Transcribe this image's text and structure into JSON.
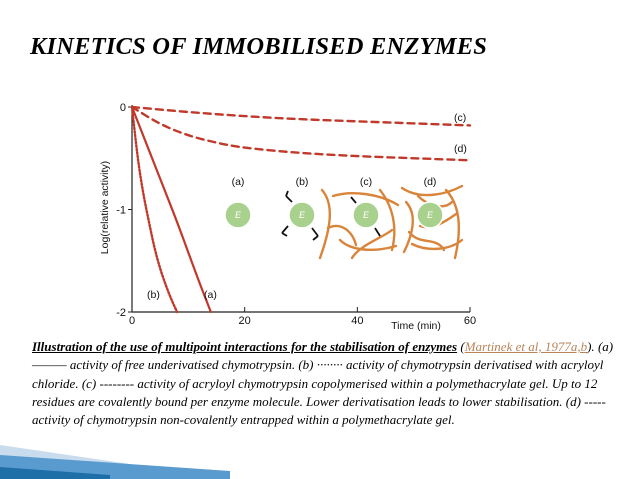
{
  "slide": {
    "title": "KINETICS OF IMMOBILISED ENZYMES"
  },
  "chart_data": {
    "type": "line",
    "title": "",
    "xlabel": "Time (min)",
    "ylabel": "Log(relative activity)",
    "xlim": [
      0,
      60
    ],
    "ylim": [
      -2,
      0
    ],
    "x_ticks": [
      0,
      20,
      40,
      60
    ],
    "x_tick_labels": [
      "0",
      "20",
      "40",
      "60"
    ],
    "y_ticks": [
      0,
      -1,
      -2
    ],
    "y_tick_labels": [
      "0",
      "-1",
      "-2"
    ],
    "series": [
      {
        "name": "(a)",
        "style": "solid",
        "color": "#c0392b",
        "x": [
          0,
          2,
          4,
          6,
          8,
          10,
          12,
          14
        ],
        "y": [
          0,
          -0.28,
          -0.56,
          -0.84,
          -1.12,
          -1.42,
          -1.72,
          -2.0
        ]
      },
      {
        "name": "(b)",
        "style": "dotted",
        "color": "#c0392b",
        "x": [
          0,
          1,
          2,
          3,
          4,
          5,
          6,
          7,
          8
        ],
        "y": [
          0,
          -0.5,
          -0.85,
          -1.12,
          -1.38,
          -1.58,
          -1.74,
          -1.88,
          -2.0
        ]
      },
      {
        "name": "(c)",
        "style": "dashed",
        "color": "#c0392b",
        "x": [
          0,
          10,
          20,
          30,
          40,
          50,
          60
        ],
        "y": [
          0,
          -0.05,
          -0.09,
          -0.12,
          -0.14,
          -0.16,
          -0.18
        ]
      },
      {
        "name": "(d)",
        "style": "dashed",
        "color": "#c0392b",
        "x": [
          0,
          5,
          10,
          15,
          20,
          30,
          40,
          50,
          60
        ],
        "y": [
          0,
          -0.17,
          -0.28,
          -0.35,
          -0.4,
          -0.45,
          -0.48,
          -0.5,
          -0.52
        ]
      }
    ],
    "series_labels": [
      "(a)",
      "(b)",
      "(c)",
      "(d)"
    ],
    "grid": false,
    "inset": {
      "labels": [
        "(a)",
        "(b)",
        "(c)",
        "(d)"
      ],
      "enzyme_symbol": "E",
      "enzyme_color": "#a9d18e",
      "polymer_color": "#d9843b"
    }
  },
  "caption": {
    "title": "Illustration of the use of multipoint interactions for the stabilisation of enzymes",
    "ref_open": " (",
    "ref_link": "Martinek et al, 1977a,b",
    "ref_close": ").",
    "body": " (a) ——— activity of free underivatised chymotrypsin. (b) ········ activity of chymotrypsin derivatised with acryloyl chloride. (c) -------- activity of acryloyl chymotrypsin copolymerised within a polymethacrylate gel. Up to 12 residues are covalently bound per enzyme molecule. Lower derivatisation leads to lower stabilisation. (d) ----- activity of chymotrypsin non-covalently entrapped within a polymethacrylate gel."
  },
  "theme": {
    "curve": "#c0392b",
    "link": "#b8845a",
    "bar_dark": "#1e6ea8",
    "bar_light": "#c8dced"
  }
}
